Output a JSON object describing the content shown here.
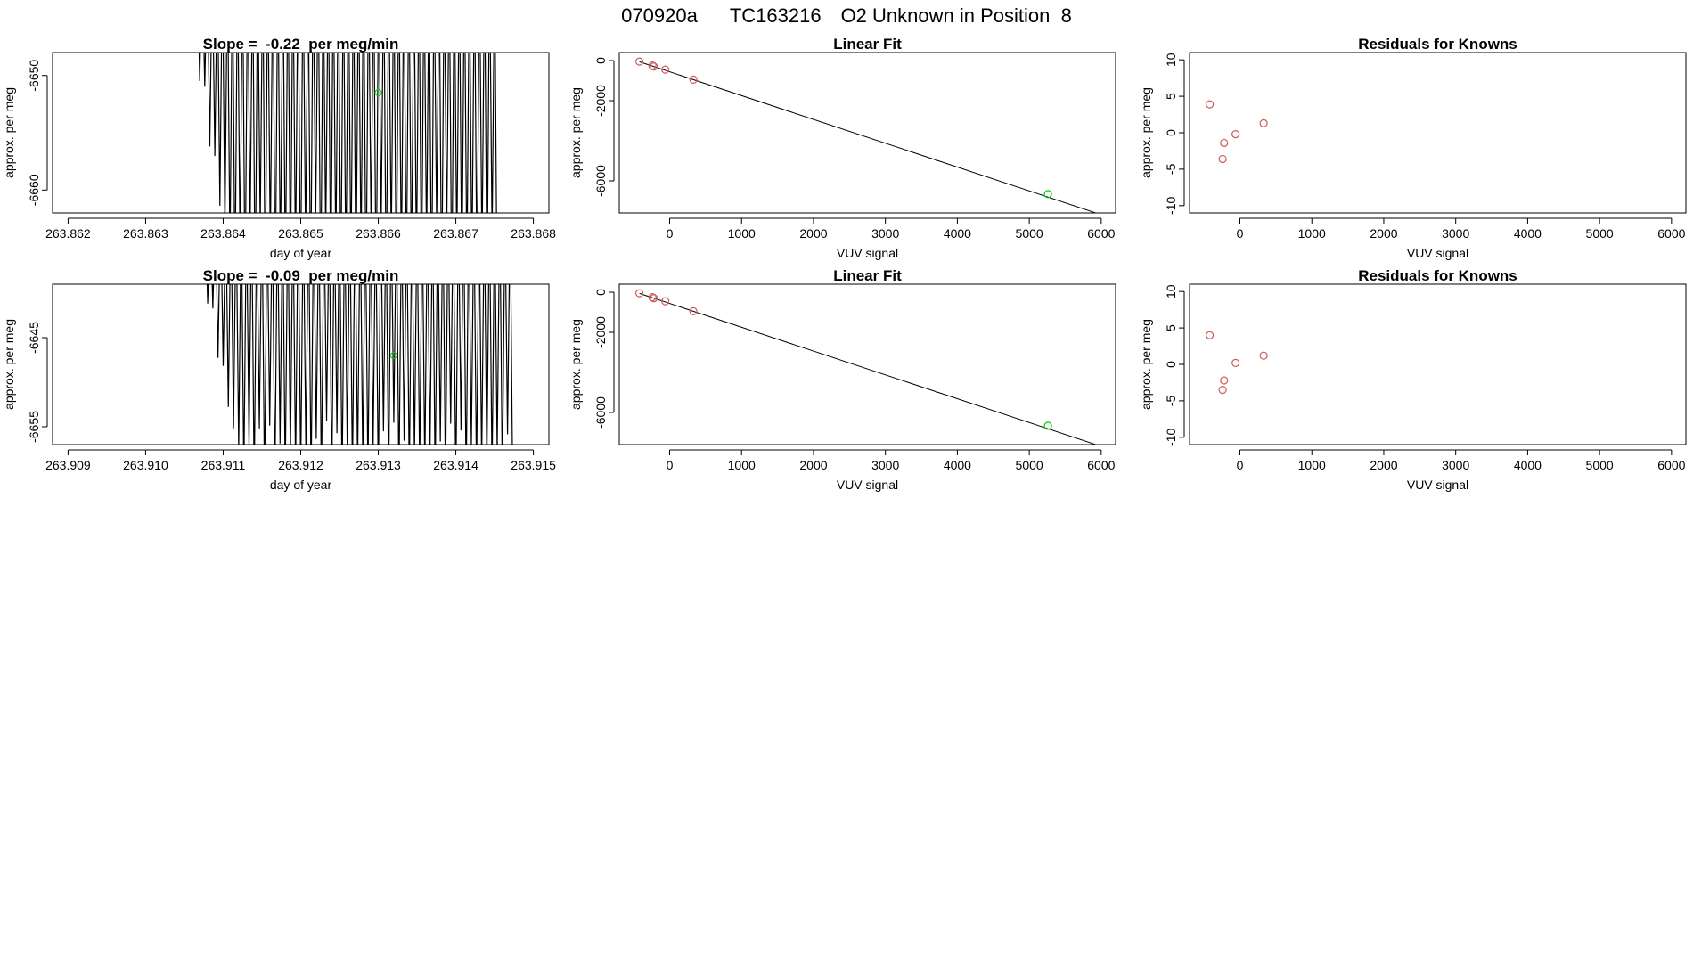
{
  "main_title": {
    "run": "070920a",
    "tank": "TC163216",
    "desc": "O2 Unknown in Position  8"
  },
  "colors": {
    "axis": "#000000",
    "known": "#cd5c5c",
    "unknown": "#00cc00"
  },
  "chart_data": [
    {
      "id": "ts1",
      "type": "line",
      "title": "Slope =  -0.22  per meg/min",
      "xlabel": "day of year",
      "ylabel": "approx. per meg",
      "xlim": [
        263.8618,
        263.8682
      ],
      "ylim": [
        -6662,
        -6648
      ],
      "xticks": [
        "263.862",
        "263.863",
        "263.864",
        "263.865",
        "263.866",
        "263.867",
        "263.868"
      ],
      "yticks": [
        "-6650",
        "-6660"
      ],
      "trace": {
        "start": 263.8636,
        "end": 263.8675,
        "cycles": 60,
        "hi": -6640,
        "lo": -6670
      },
      "unknown_point": {
        "x": 263.866,
        "y": -6651.5
      }
    },
    {
      "id": "fit1",
      "type": "scatter",
      "title": "Linear Fit",
      "xlabel": "VUV signal",
      "ylabel": "approx. per meg",
      "xlim": [
        -700,
        6200
      ],
      "ylim": [
        -7600,
        400
      ],
      "xticks": [
        "0",
        "1000",
        "2000",
        "3000",
        "4000",
        "5000",
        "6000"
      ],
      "yticks": [
        "0",
        "-2000",
        "-6000"
      ],
      "fit_line": {
        "x": [
          -420,
          6050
        ],
        "y": [
          -60,
          -7750
        ]
      },
      "knowns": [
        {
          "x": -420,
          "y": -50
        },
        {
          "x": -240,
          "y": -250
        },
        {
          "x": -220,
          "y": -300
        },
        {
          "x": -60,
          "y": -450
        },
        {
          "x": 330,
          "y": -950
        }
      ],
      "unknown": {
        "x": 5260,
        "y": -6660
      }
    },
    {
      "id": "res1",
      "type": "scatter",
      "title": "Residuals for Knowns",
      "xlabel": "VUV signal",
      "ylabel": "approx. per meg",
      "xlim": [
        -700,
        6200
      ],
      "ylim": [
        -11,
        11
      ],
      "xticks": [
        "0",
        "1000",
        "2000",
        "3000",
        "4000",
        "5000",
        "6000"
      ],
      "yticks": [
        "10",
        "5",
        "0",
        "-5",
        "-10"
      ],
      "knowns": [
        {
          "x": -420,
          "y": 3.9
        },
        {
          "x": -220,
          "y": -1.4
        },
        {
          "x": -240,
          "y": -3.6
        },
        {
          "x": -60,
          "y": -0.2
        },
        {
          "x": 330,
          "y": 1.3
        }
      ]
    },
    {
      "id": "ts2",
      "type": "line",
      "title": "Slope =  -0.09  per meg/min",
      "xlabel": "day of year",
      "ylabel": "approx. per meg",
      "xlim": [
        263.9088,
        263.9152
      ],
      "ylim": [
        -6657,
        -6639
      ],
      "xticks": [
        "263.909",
        "263.910",
        "263.911",
        "263.912",
        "263.913",
        "263.914",
        "263.915"
      ],
      "yticks": [
        "-6645",
        "-6655"
      ],
      "trace": {
        "start": 263.9107,
        "end": 263.9147,
        "cycles": 60,
        "hi": -6630,
        "lo": -6662
      },
      "unknown_point": {
        "x": 263.9132,
        "y": -6647
      }
    },
    {
      "id": "fit2",
      "type": "scatter",
      "title": "Linear Fit",
      "xlabel": "VUV signal",
      "ylabel": "approx. per meg",
      "xlim": [
        -700,
        6200
      ],
      "ylim": [
        -7600,
        400
      ],
      "xticks": [
        "0",
        "1000",
        "2000",
        "3000",
        "4000",
        "5000",
        "6000"
      ],
      "yticks": [
        "0",
        "-2000",
        "-6000"
      ],
      "fit_line": {
        "x": [
          -420,
          6050
        ],
        "y": [
          -60,
          -7750
        ]
      },
      "knowns": [
        {
          "x": -420,
          "y": -50
        },
        {
          "x": -240,
          "y": -250
        },
        {
          "x": -220,
          "y": -300
        },
        {
          "x": -60,
          "y": -450
        },
        {
          "x": 330,
          "y": -950
        }
      ],
      "unknown": {
        "x": 5260,
        "y": -6660
      }
    },
    {
      "id": "res2",
      "type": "scatter",
      "title": "Residuals for Knowns",
      "xlabel": "VUV signal",
      "ylabel": "approx. per meg",
      "xlim": [
        -700,
        6200
      ],
      "ylim": [
        -11,
        11
      ],
      "xticks": [
        "0",
        "1000",
        "2000",
        "3000",
        "4000",
        "5000",
        "6000"
      ],
      "yticks": [
        "10",
        "5",
        "0",
        "-5",
        "-10"
      ],
      "knowns": [
        {
          "x": -420,
          "y": 4.0
        },
        {
          "x": -220,
          "y": -2.2
        },
        {
          "x": -240,
          "y": -3.5
        },
        {
          "x": -60,
          "y": 0.2
        },
        {
          "x": 330,
          "y": 1.2
        }
      ]
    }
  ]
}
